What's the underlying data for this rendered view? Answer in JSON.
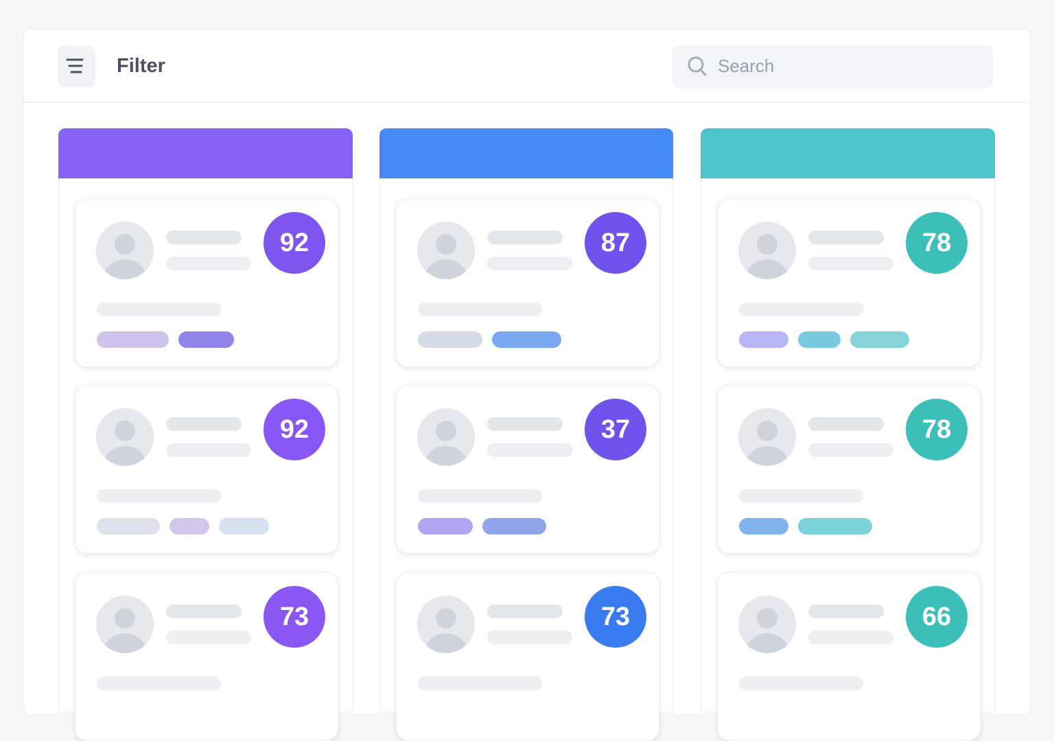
{
  "header": {
    "filter_label": "Filter",
    "search_placeholder": "Search"
  },
  "columns": [
    {
      "color": "#8663f5",
      "cards": [
        {
          "score": 92,
          "color": "#7f55ef"
        },
        {
          "score": 92,
          "color": "#8856f4"
        },
        {
          "score": 73,
          "color": "#8a57f3"
        }
      ]
    },
    {
      "color": "#4689f7",
      "cards": [
        {
          "score": 87,
          "color": "#7053ec"
        },
        {
          "score": 37,
          "color": "#7053ec"
        },
        {
          "score": 73,
          "color": "#3a7bef"
        }
      ]
    },
    {
      "color": "#4bc5c9",
      "cards": [
        {
          "score": 78,
          "color": "#3dbfb9"
        },
        {
          "score": 78,
          "color": "#3dbfb9"
        },
        {
          "score": 66,
          "color": "#3dbfb9"
        }
      ]
    }
  ]
}
